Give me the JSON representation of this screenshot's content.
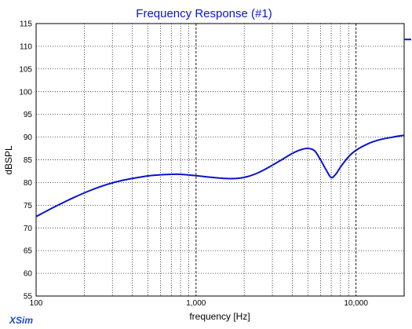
{
  "app": {
    "brand": "XSim"
  },
  "chart_data": {
    "type": "line",
    "title": "Frequency Response (#1)",
    "xlabel": "frequency [Hz]",
    "ylabel": "dBSPL",
    "xscale": "log",
    "xlim": [
      100,
      20000
    ],
    "ylim": [
      55,
      115
    ],
    "xticks": [
      100,
      1000,
      10000
    ],
    "xtick_labels": [
      "100",
      "1,000",
      "10,000"
    ],
    "yticks": [
      55,
      60,
      65,
      70,
      75,
      80,
      85,
      90,
      95,
      100,
      105,
      110,
      115
    ],
    "grid": true,
    "line_color": "#0a14c8",
    "series": [
      {
        "x": [
          100,
          130,
          170,
          220,
          280,
          350,
          450,
          550,
          700,
          800,
          1000,
          1200,
          1500,
          1800,
          2100,
          2500,
          3000,
          3500,
          4000,
          4500,
          5000,
          5500,
          6000,
          6500,
          7000,
          7500,
          8000,
          9000,
          10000,
          12000,
          14000,
          17000,
          20000
        ],
        "y": [
          72.5,
          74.6,
          76.6,
          78.3,
          79.6,
          80.5,
          81.2,
          81.6,
          81.8,
          81.8,
          81.5,
          81.2,
          80.9,
          80.9,
          81.3,
          82.3,
          83.8,
          85.2,
          86.4,
          87.2,
          87.5,
          87.0,
          85.0,
          82.8,
          81.1,
          81.9,
          83.4,
          85.7,
          87.1,
          88.6,
          89.4,
          90.0,
          90.4
        ]
      }
    ],
    "marker": {
      "y": 111.5
    }
  }
}
